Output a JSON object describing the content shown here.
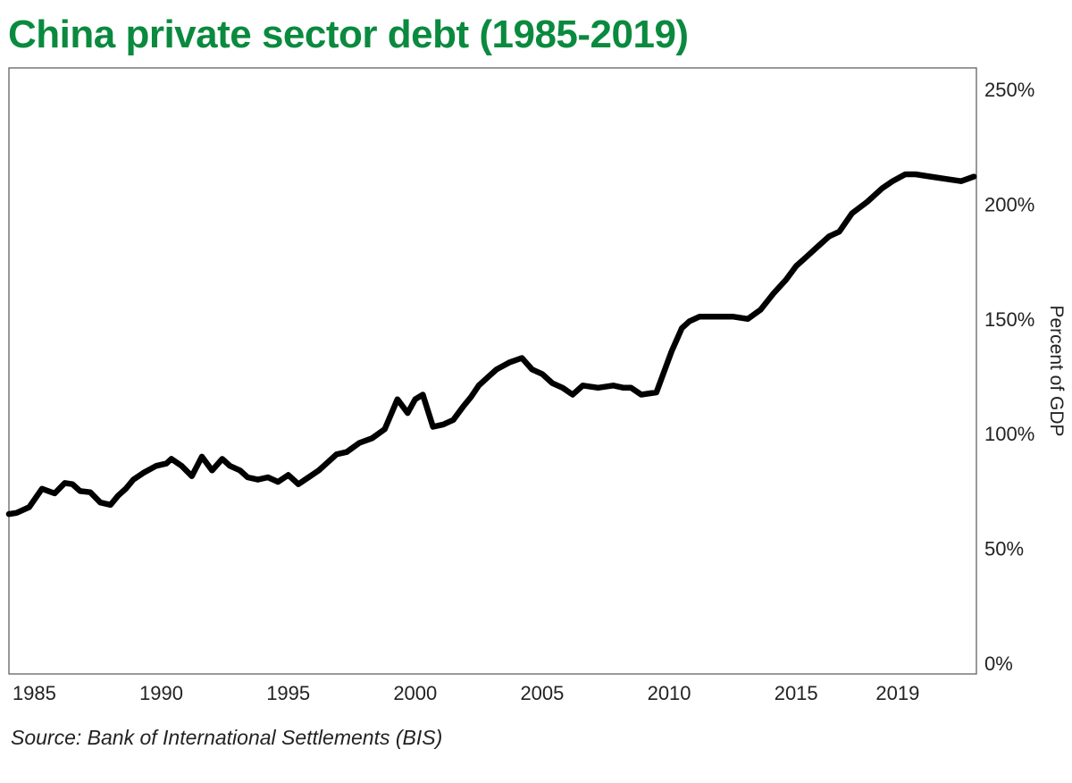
{
  "header": {
    "title": "China private sector debt (1985-2019)"
  },
  "footer": {
    "source": "Source: Bank of International Settlements (BIS)"
  },
  "colors": {
    "title": "#0a8a3e",
    "line": "#000000",
    "frame": "#555555"
  },
  "chart_data": {
    "type": "line",
    "title": "China private sector debt (1985-2019)",
    "ylabel": "Percent of GDP",
    "xlabel": "",
    "y_axis_position": "right",
    "grid": false,
    "xlim": [
      1984.0,
      2022.1
    ],
    "ylim": [
      0,
      255
    ],
    "x_ticks": [
      {
        "value": 1985,
        "label": "1985"
      },
      {
        "value": 1990,
        "label": "1990"
      },
      {
        "value": 1995,
        "label": "1995"
      },
      {
        "value": 2000,
        "label": "2000"
      },
      {
        "value": 2005,
        "label": "2005"
      },
      {
        "value": 2010,
        "label": "2010"
      },
      {
        "value": 2015,
        "label": "2015"
      },
      {
        "value": 2019,
        "label": "2019"
      }
    ],
    "y_ticks": [
      {
        "value": 0,
        "label": "0%"
      },
      {
        "value": 50,
        "label": "50%"
      },
      {
        "value": 100,
        "label": "100%"
      },
      {
        "value": 150,
        "label": "150%"
      },
      {
        "value": 200,
        "label": "200%"
      },
      {
        "value": 250,
        "label": "250%"
      }
    ],
    "series": [
      {
        "x": [
          1984.0,
          1984.3,
          1984.8,
          1985.3,
          1985.8,
          1986.2,
          1986.5,
          1986.8,
          1987.2,
          1987.6,
          1988.0,
          1988.3,
          1988.6,
          1988.9,
          1989.3,
          1989.8,
          1990.2,
          1990.4,
          1990.8,
          1991.2,
          1991.6,
          1992.0,
          1992.4,
          1992.7,
          1993.1,
          1993.4,
          1993.8,
          1994.2,
          1994.6,
          1995.0,
          1995.4,
          1995.8,
          1996.2,
          1996.5,
          1996.9,
          1997.3,
          1997.8,
          1998.3,
          1998.8,
          1999.3,
          1999.7,
          2000.0,
          2000.3,
          2000.7,
          2001.1,
          2001.5,
          2001.9,
          2002.2,
          2002.5,
          2002.9,
          2003.2,
          2003.7,
          2004.2,
          2004.6,
          2005.0,
          2005.4,
          2005.8,
          2006.2,
          2006.6,
          2007.2,
          2007.8,
          2008.2,
          2008.5,
          2008.9,
          2009.5,
          2010.1,
          2010.5,
          2010.8,
          2011.2,
          2011.6,
          2012.0,
          2012.5,
          2013.1,
          2013.6,
          2014.1,
          2014.6,
          2015.0,
          2015.4,
          2015.8,
          2016.3,
          2016.7,
          2017.2,
          2017.8,
          2018.4,
          2018.8,
          2019.3,
          2019.7,
          2020.3,
          2020.9,
          2021.5,
          2022.0
        ],
        "values": [
          65,
          65.5,
          68,
          76,
          74,
          78.5,
          78,
          75,
          74.5,
          70,
          69,
          73,
          76,
          80,
          83,
          86,
          87,
          89,
          86,
          81.5,
          90,
          84,
          89,
          86,
          84,
          81,
          80,
          81,
          79,
          82,
          78,
          81,
          84,
          87,
          91,
          92,
          96,
          98,
          102,
          115,
          109,
          115,
          117,
          103,
          104,
          106,
          112,
          116,
          121,
          125,
          128,
          131,
          133,
          128,
          126,
          122,
          120,
          117,
          121,
          120,
          121,
          120,
          120,
          117,
          118,
          136,
          146,
          149,
          151,
          151,
          151,
          151,
          150,
          154,
          161,
          167,
          173,
          177,
          181,
          186,
          188,
          196,
          201,
          207,
          210,
          213,
          213,
          212,
          211,
          210,
          212
        ]
      }
    ]
  }
}
